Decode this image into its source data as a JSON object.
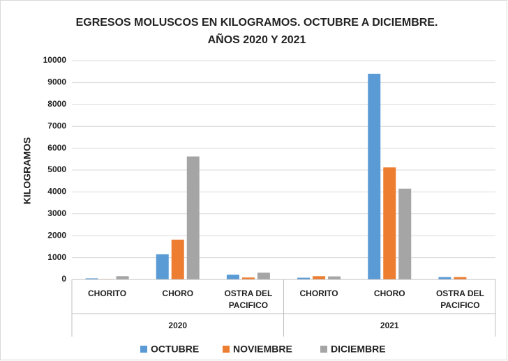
{
  "chart_data": {
    "type": "bar",
    "title": [
      "EGRESOS MOLUSCOS EN KILOGRAMOS. OCTUBRE A DICIEMBRE.",
      "AÑOS 2020 Y 2021"
    ],
    "y_label": "KILOGRAMOS",
    "categories": [
      "CHORITO",
      "CHORO",
      "OSTRA DEL PACIFICO",
      "CHORITO",
      "CHORO",
      "OSTRA DEL PACIFICO"
    ],
    "groups": [
      "2020",
      "2021"
    ],
    "series": [
      {
        "name": "OCTUBRE",
        "color": "#5b9bd5",
        "values": [
          50,
          1150,
          220,
          80,
          9400,
          110
        ]
      },
      {
        "name": "NOVIEMBRE",
        "color": "#ed7d31",
        "values": [
          20,
          1820,
          90,
          150,
          5120,
          110
        ]
      },
      {
        "name": "DICIEMBRE",
        "color": "#a5a5a5",
        "values": [
          150,
          5620,
          310,
          140,
          4150,
          0
        ]
      }
    ],
    "ylim": [
      0,
      10000
    ],
    "yticks": [
      0,
      1000,
      2000,
      3000,
      4000,
      5000,
      6000,
      7000,
      8000,
      9000,
      10000
    ],
    "grid": true,
    "legend": "bottom"
  }
}
